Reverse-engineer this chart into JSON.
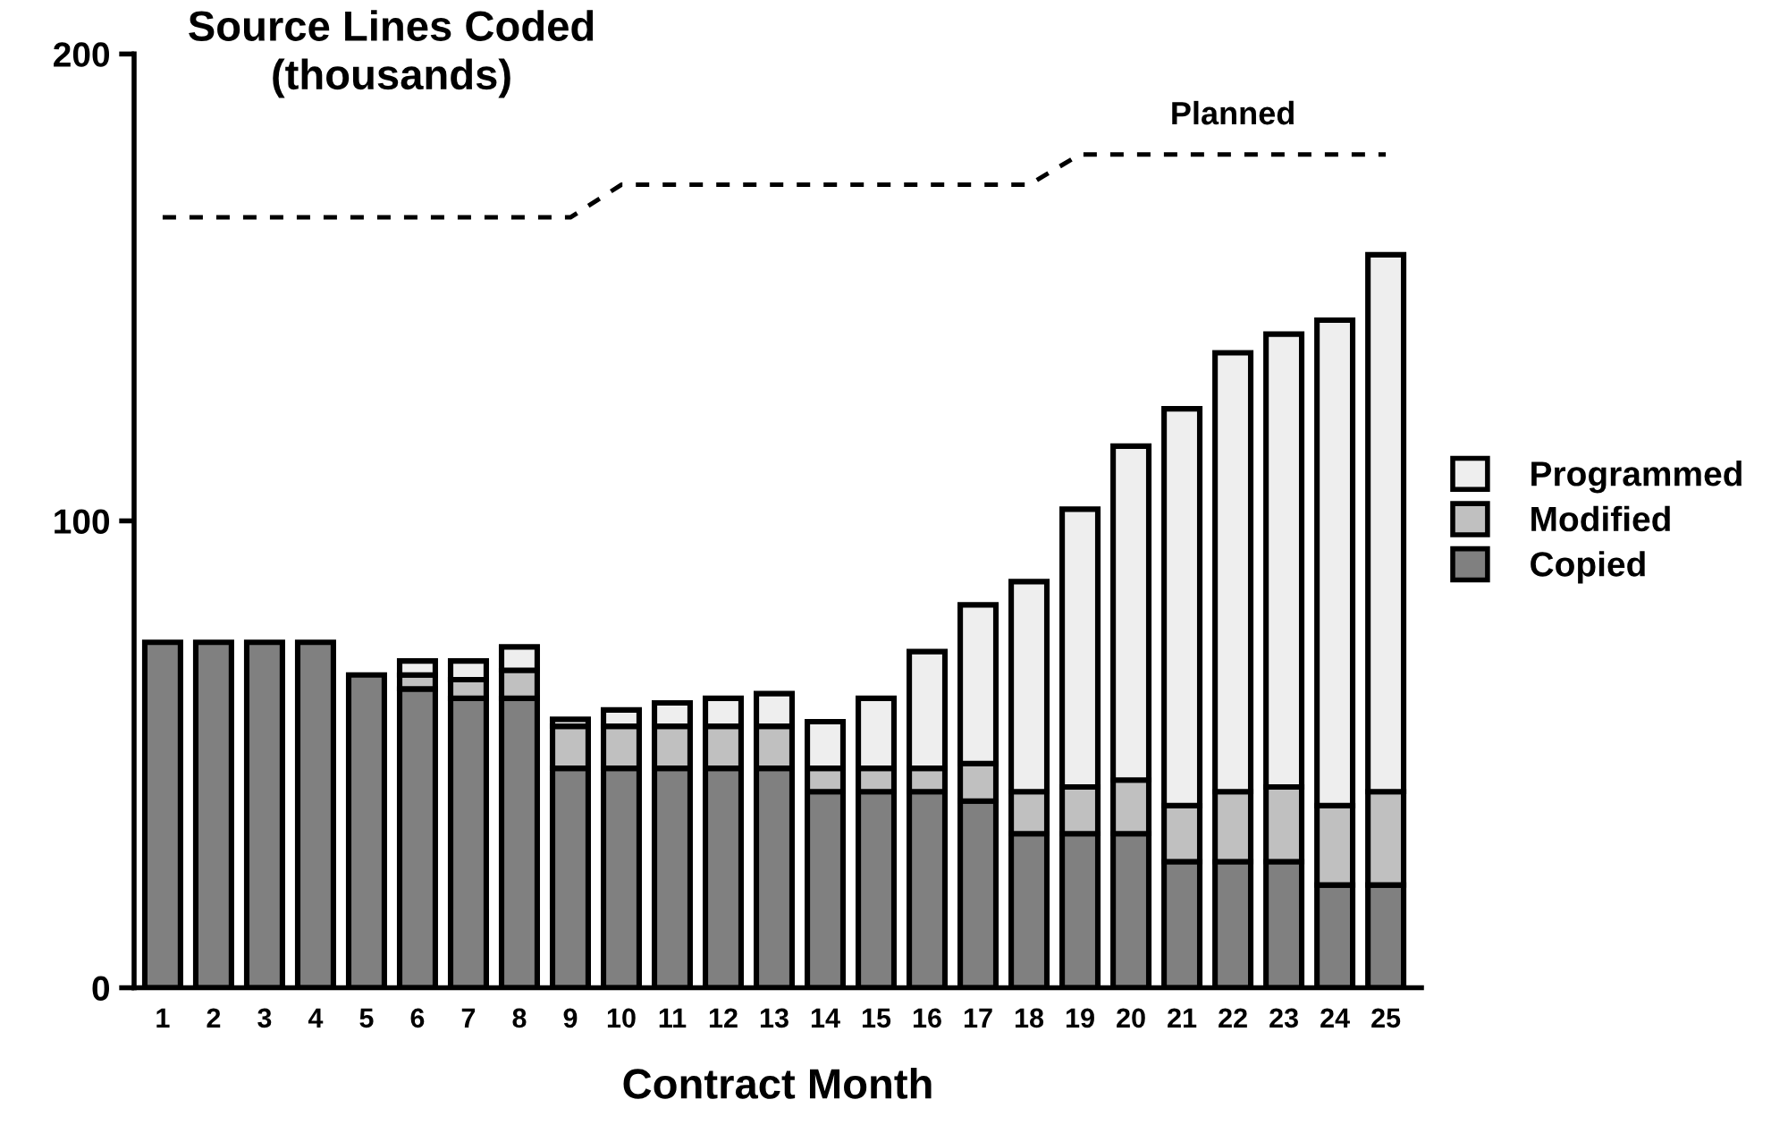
{
  "chart_data": {
    "type": "bar",
    "stacked": true,
    "ylabel": "Source Lines Coded\n(thousands)",
    "xlabel": "Contract Month",
    "categories": [
      "1",
      "2",
      "3",
      "4",
      "5",
      "6",
      "7",
      "8",
      "9",
      "10",
      "11",
      "12",
      "13",
      "14",
      "15",
      "16",
      "17",
      "18",
      "19",
      "20",
      "21",
      "22",
      "23",
      "24",
      "25"
    ],
    "series": [
      {
        "name": "Copied",
        "color": "#808080",
        "values": [
          74,
          74,
          74,
          74,
          67,
          64,
          62,
          62,
          47,
          47,
          47,
          47,
          47,
          42,
          42,
          42,
          40,
          33,
          33,
          33,
          27,
          27,
          27,
          22,
          22
        ]
      },
      {
        "name": "Modified",
        "color": "#c0c0c0",
        "values": [
          null,
          null,
          null,
          null,
          null,
          3,
          4,
          6,
          9,
          9,
          9,
          9,
          9,
          5,
          5,
          5,
          8,
          9,
          10,
          11.5,
          12,
          15,
          16,
          17,
          20
        ]
      },
      {
        "name": "Programmed",
        "color": "#eeeeee",
        "values": [
          null,
          null,
          null,
          null,
          null,
          3,
          4,
          5,
          1.5,
          3.5,
          5,
          6,
          7,
          10,
          15,
          25,
          34,
          45,
          59.5,
          71.5,
          85,
          94,
          97,
          104,
          115
        ]
      },
      {
        "name": "Planned",
        "type": "line",
        "color": "#000000",
        "line_style": "dashed",
        "x": [
          "1",
          "9",
          "10",
          "18",
          "19",
          "25"
        ],
        "values": [
          165,
          165,
          172,
          172,
          178.5,
          178.5
        ]
      }
    ],
    "ylim": [
      0,
      200
    ],
    "yticks": [
      0,
      100,
      200
    ],
    "grid": false,
    "legend": "right"
  }
}
